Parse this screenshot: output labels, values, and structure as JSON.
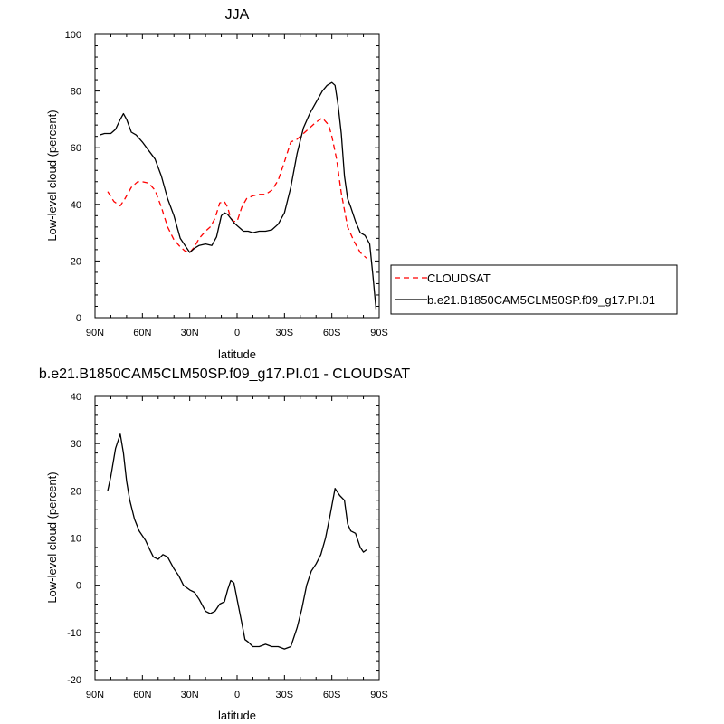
{
  "chart_data": [
    {
      "type": "line",
      "title": "JJA",
      "xlabel": "latitude",
      "ylabel": "Low-level cloud (percent)",
      "xlim": [
        90,
        -90
      ],
      "ylim": [
        0,
        100
      ],
      "xticks": [
        90,
        60,
        30,
        0,
        -30,
        -60,
        -90
      ],
      "xtick_labels": [
        "90N",
        "60N",
        "30N",
        "0",
        "30S",
        "60S",
        "90S"
      ],
      "yticks": [
        0,
        20,
        40,
        60,
        80,
        100
      ],
      "ytick_labels": [
        "0",
        "20",
        "40",
        "60",
        "80",
        "100"
      ],
      "legend_position": "right",
      "series": [
        {
          "name": "CLOUDSAT",
          "color": "#ff0000",
          "dash": "dashed",
          "x": [
            82,
            78,
            74,
            71,
            67,
            63,
            60,
            56,
            52,
            48,
            44,
            40,
            36,
            33,
            30,
            27,
            24,
            20,
            17,
            14,
            11,
            8,
            6,
            4,
            2,
            0,
            -3,
            -6,
            -10,
            -14,
            -18,
            -22,
            -26,
            -30,
            -34,
            -38,
            -42,
            -46,
            -50,
            -54,
            -58,
            -60,
            -63,
            -66,
            -70,
            -74,
            -78,
            -82
          ],
          "y": [
            44.5,
            41,
            39.5,
            42,
            46,
            48,
            48,
            47.5,
            45,
            39,
            32,
            27.5,
            25,
            23.5,
            23,
            25,
            28,
            30.5,
            32,
            35,
            40.5,
            41,
            39,
            35,
            34,
            34,
            39,
            42,
            43,
            43.5,
            43.5,
            45,
            48.5,
            55,
            62,
            63,
            65,
            67,
            69,
            70.5,
            68,
            64,
            56,
            44,
            32,
            27,
            23,
            21
          ]
        },
        {
          "name": "b.e21.B1850CAM5CLM50SP.f09_g17.PI.01",
          "color": "#000000",
          "dash": "solid",
          "x": [
            87,
            84,
            80,
            77,
            74,
            72,
            70,
            67,
            64,
            60,
            56,
            52,
            48,
            44,
            40,
            36,
            33,
            30,
            27,
            24,
            20,
            16,
            13,
            10,
            8,
            6,
            4,
            2,
            0,
            -2,
            -4,
            -7,
            -10,
            -14,
            -18,
            -22,
            -26,
            -30,
            -34,
            -38,
            -42,
            -46,
            -50,
            -54,
            -57,
            -60,
            -62,
            -64,
            -66,
            -68,
            -70,
            -72,
            -75,
            -78,
            -81,
            -84,
            -86,
            -88
          ],
          "y": [
            64.5,
            65,
            65,
            66.5,
            70,
            72,
            70,
            65.5,
            64.5,
            62,
            59,
            56,
            50,
            42,
            36,
            28,
            25.5,
            23,
            24.5,
            25.5,
            26,
            25.5,
            28.5,
            36,
            37,
            36.5,
            35,
            33.5,
            32.5,
            31.5,
            30.5,
            30.5,
            30,
            30.5,
            30.5,
            31,
            33,
            37,
            46,
            58,
            67,
            72,
            76,
            80,
            82,
            83,
            82,
            75,
            65,
            50,
            42,
            39,
            34,
            30,
            29,
            26,
            15,
            3
          ]
        }
      ]
    },
    {
      "type": "line",
      "title": "b.e21.B1850CAM5CLM50SP.f09_g17.PI.01 - CLOUDSAT",
      "xlabel": "latitude",
      "ylabel": "Low-level cloud (percent)",
      "xlim": [
        90,
        -90
      ],
      "ylim": [
        -20,
        40
      ],
      "xticks": [
        90,
        60,
        30,
        0,
        -30,
        -60,
        -90
      ],
      "xtick_labels": [
        "90N",
        "60N",
        "30N",
        "0",
        "30S",
        "60S",
        "90S"
      ],
      "yticks": [
        -20,
        -10,
        0,
        10,
        20,
        30,
        40
      ],
      "ytick_labels": [
        "-20",
        "-10",
        "0",
        "10",
        "20",
        "30",
        "40"
      ],
      "series": [
        {
          "color": "#000000",
          "dash": "solid",
          "x": [
            82,
            80,
            77,
            74,
            72,
            70,
            68,
            65,
            62,
            58,
            56,
            53,
            50,
            47,
            44,
            40,
            37,
            34,
            30,
            27,
            24,
            20,
            17,
            14,
            11,
            8,
            6,
            4,
            2,
            0,
            -3,
            -5,
            -7,
            -10,
            -14,
            -18,
            -22,
            -26,
            -30,
            -34,
            -38,
            -41,
            -44,
            -47,
            -50,
            -53,
            -56,
            -59,
            -62,
            -65,
            -68,
            -70,
            -72,
            -75,
            -78,
            -80,
            -82
          ],
          "y": [
            20,
            23,
            29,
            32,
            28,
            22,
            18,
            14,
            11.5,
            9.5,
            8,
            6,
            5.5,
            6.5,
            6,
            3.5,
            2,
            0,
            -1,
            -1.5,
            -3,
            -5.5,
            -6,
            -5.5,
            -4,
            -3.5,
            -1,
            1,
            0.5,
            -3,
            -8,
            -11.5,
            -12,
            -13,
            -13,
            -12.5,
            -13,
            -13,
            -13.5,
            -13,
            -9,
            -5,
            0,
            3,
            4.5,
            6.5,
            10,
            15,
            20.5,
            19,
            18,
            13,
            11.5,
            11,
            8,
            7,
            7.5
          ]
        }
      ]
    }
  ]
}
